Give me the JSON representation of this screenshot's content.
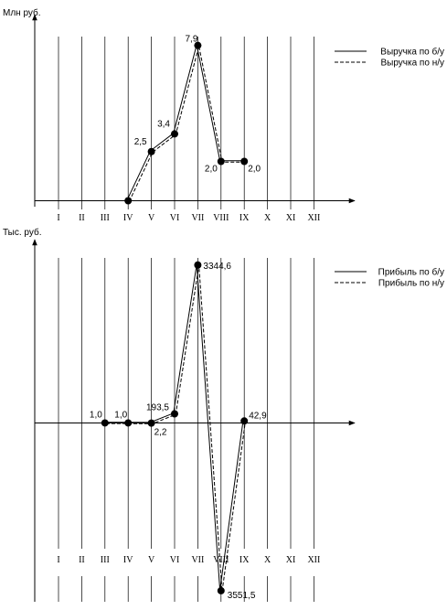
{
  "chart_data": [
    {
      "type": "line",
      "ylabel": "Млн руб.",
      "categories": [
        "I",
        "II",
        "III",
        "IV",
        "V",
        "VI",
        "VII",
        "VIII",
        "IX",
        "X",
        "XI",
        "XII"
      ],
      "ylim": [
        0,
        8.5
      ],
      "grid": "vertical",
      "legend_position": "top-right",
      "series": [
        {
          "name": "Выручка по б/у",
          "style": "solid",
          "x": [
            "IV",
            "V",
            "VI",
            "VII",
            "VIII",
            "IX"
          ],
          "values": [
            0,
            2.5,
            3.4,
            7.9,
            2.0,
            2.0
          ]
        },
        {
          "name": "Выручка по н/у",
          "style": "dashed",
          "x": [
            "IV",
            "V",
            "VI",
            "VII",
            "VIII",
            "IX"
          ],
          "values": [
            0,
            2.5,
            3.4,
            7.9,
            2.0,
            2.0
          ]
        }
      ],
      "data_labels": [
        {
          "x": "V",
          "y": 2.5,
          "text": "2,5"
        },
        {
          "x": "VI",
          "y": 3.4,
          "text": "3,4"
        },
        {
          "x": "VII",
          "y": 7.9,
          "text": "7,9"
        },
        {
          "x": "VIII",
          "y": 2.0,
          "text": "2,0"
        },
        {
          "x": "IX",
          "y": 2.0,
          "text": "2,0"
        }
      ]
    },
    {
      "type": "line",
      "ylabel": "Тыс. руб.",
      "categories": [
        "I",
        "II",
        "III",
        "IV",
        "V",
        "VI",
        "VII",
        "VIII",
        "IX",
        "X",
        "XI",
        "XII"
      ],
      "ylim": [
        -3700,
        3700
      ],
      "grid": "vertical",
      "legend_position": "top-right",
      "series": [
        {
          "name": "Прибыль по б/у",
          "style": "solid",
          "x": [
            "III",
            "IV",
            "V",
            "VI",
            "VII",
            "VIII",
            "IX"
          ],
          "values": [
            1.0,
            1.0,
            -2.2,
            193.5,
            3344.6,
            -3551.5,
            42.9
          ]
        },
        {
          "name": "Прибыль по н/у",
          "style": "dashed",
          "x": [
            "III",
            "IV",
            "V",
            "VI",
            "VII",
            "VIII",
            "IX"
          ],
          "values": [
            1.0,
            1.0,
            -2.2,
            193.5,
            3344.6,
            -3551.5,
            42.9
          ]
        }
      ],
      "data_labels": [
        {
          "x": "III",
          "y": 1.0,
          "text": "1,0"
        },
        {
          "x": "IV",
          "y": 1.0,
          "text": "1,0"
        },
        {
          "x": "V",
          "y": -2.2,
          "text": "2,2"
        },
        {
          "x": "VI",
          "y": 193.5,
          "text": "193,5"
        },
        {
          "x": "VII",
          "y": 3344.6,
          "text": "3344,6"
        },
        {
          "x": "VIII",
          "y": -3551.5,
          "text": "3551,5"
        },
        {
          "x": "IX",
          "y": 42.9,
          "text": "42,9"
        }
      ]
    }
  ]
}
